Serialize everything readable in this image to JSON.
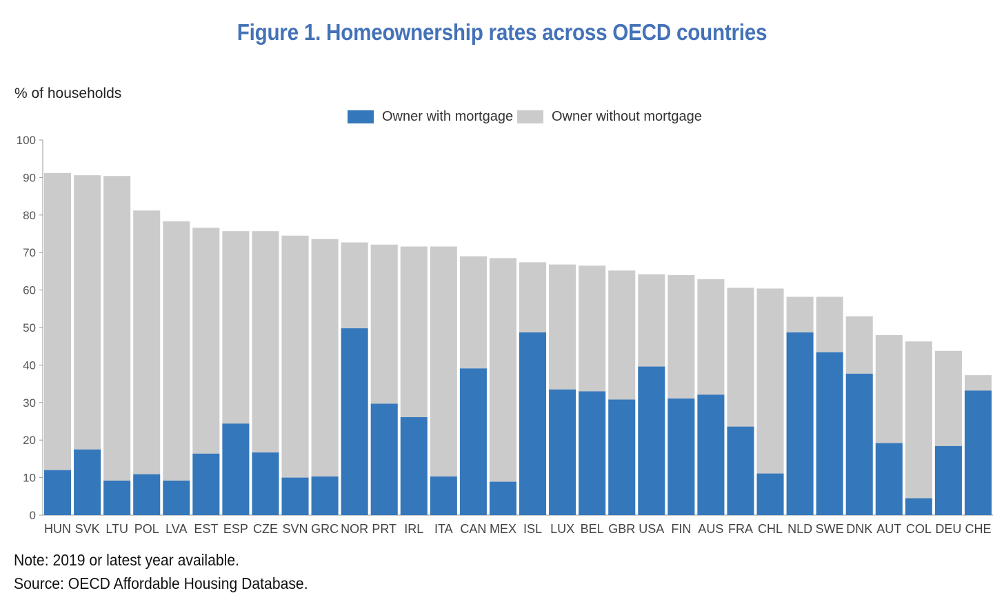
{
  "title": "Figure 1. Homeownership rates across OECD countries",
  "notes": {
    "note": "Note: 2019 or latest year available.",
    "source": "Source: OECD Affordable Housing Database."
  },
  "colors": {
    "with_mortgage": "#3577bb",
    "without_mortgage": "#cbcbcb",
    "title": "#4472b8"
  },
  "chart_data": {
    "type": "bar",
    "stacked": true,
    "ylabel": "% of households",
    "xlabel": "",
    "ylim": [
      0,
      100
    ],
    "yticks": [
      0,
      10,
      20,
      30,
      40,
      50,
      60,
      70,
      80,
      90,
      100
    ],
    "legend_position": "top-center",
    "grid": false,
    "categories": [
      "HUN",
      "SVK",
      "LTU",
      "POL",
      "LVA",
      "EST",
      "ESP",
      "CZE",
      "SVN",
      "GRC",
      "NOR",
      "PRT",
      "IRL",
      "ITA",
      "CAN",
      "MEX",
      "ISL",
      "LUX",
      "BEL",
      "GBR",
      "USA",
      "FIN",
      "AUS",
      "FRA",
      "CHL",
      "NLD",
      "SWE",
      "DNK",
      "AUT",
      "COL",
      "DEU",
      "CHE"
    ],
    "series": [
      {
        "name": "Owner with mortgage",
        "values": [
          12.0,
          17.5,
          9.2,
          10.9,
          9.2,
          16.4,
          24.4,
          16.7,
          10.0,
          10.3,
          49.8,
          29.7,
          26.1,
          10.3,
          39.1,
          8.9,
          48.7,
          33.5,
          33.0,
          30.8,
          39.6,
          31.1,
          32.1,
          23.6,
          11.1,
          48.7,
          43.4,
          37.7,
          19.2,
          4.5,
          18.4,
          33.2
        ]
      },
      {
        "name": "Owner without mortgage",
        "values": [
          79.2,
          73.1,
          81.2,
          70.3,
          69.1,
          60.2,
          51.3,
          59.0,
          64.5,
          63.3,
          22.9,
          42.4,
          45.5,
          61.3,
          29.9,
          59.6,
          18.7,
          33.3,
          33.5,
          34.4,
          24.6,
          32.9,
          30.8,
          37.0,
          49.3,
          9.5,
          14.8,
          15.3,
          28.8,
          41.8,
          25.4,
          4.1
        ]
      }
    ]
  }
}
